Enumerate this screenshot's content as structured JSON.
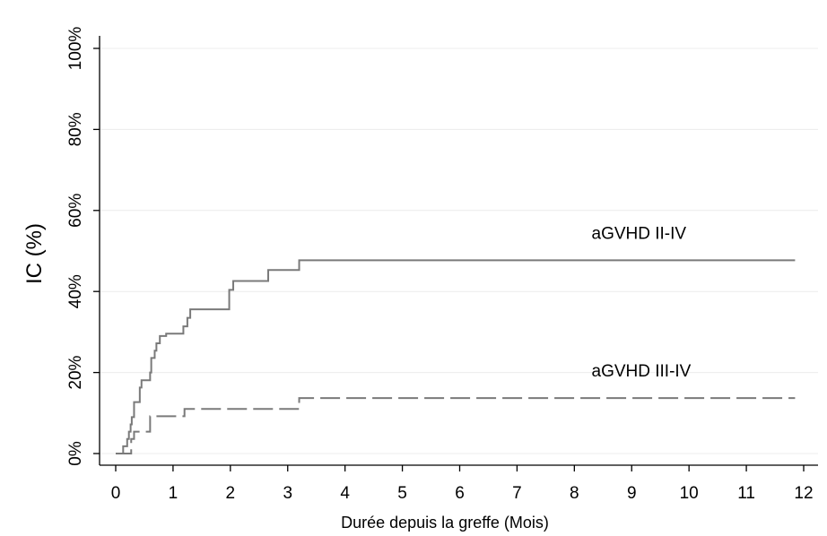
{
  "chart_data": {
    "type": "line",
    "title": "",
    "xlabel": "Durée depuis la greffe (Mois)",
    "ylabel": "IC (%)",
    "xlim": [
      0,
      12
    ],
    "ylim": [
      0,
      100
    ],
    "x_ticks": [
      0,
      1,
      2,
      3,
      4,
      5,
      6,
      7,
      8,
      9,
      10,
      11,
      12
    ],
    "x_tick_labels": [
      "0",
      "1",
      "2",
      "3",
      "4",
      "5",
      "6",
      "7",
      "8",
      "9",
      "10",
      "11",
      "12"
    ],
    "y_ticks": [
      0,
      20,
      40,
      60,
      80,
      100
    ],
    "y_tick_labels": [
      "0%",
      "20%",
      "40%",
      "60%",
      "80%",
      "100%"
    ],
    "grid": "horizontal",
    "legend": "none",
    "colors": {
      "series": "#7a7a7a",
      "axis": "#000000",
      "grid": "#ececec"
    },
    "series": [
      {
        "name": "aGVHD II-IV",
        "style": "solid",
        "step": true,
        "points": [
          [
            0,
            0
          ],
          [
            0.13,
            1.8
          ],
          [
            0.2,
            3.6
          ],
          [
            0.23,
            5.4
          ],
          [
            0.26,
            7.2
          ],
          [
            0.28,
            9.0
          ],
          [
            0.32,
            12.7
          ],
          [
            0.42,
            16.3
          ],
          [
            0.45,
            18.1
          ],
          [
            0.6,
            20.0
          ],
          [
            0.62,
            23.6
          ],
          [
            0.68,
            25.4
          ],
          [
            0.71,
            27.2
          ],
          [
            0.77,
            29.0
          ],
          [
            0.88,
            29.6
          ],
          [
            1.18,
            31.4
          ],
          [
            1.25,
            33.5
          ],
          [
            1.3,
            35.6
          ],
          [
            1.98,
            40.4
          ],
          [
            2.05,
            42.6
          ],
          [
            2.66,
            45.3
          ],
          [
            3.2,
            47.7
          ],
          [
            11.85,
            47.7
          ]
        ]
      },
      {
        "name": "aGVHD III-IV",
        "style": "dashed",
        "step": true,
        "points": [
          [
            0,
            0
          ],
          [
            0.27,
            3.6
          ],
          [
            0.32,
            5.4
          ],
          [
            0.6,
            9.2
          ],
          [
            1.2,
            11.0
          ],
          [
            3.2,
            13.7
          ],
          [
            11.85,
            13.7
          ]
        ]
      }
    ],
    "annotations": [
      {
        "text": "aGVHD II-IV",
        "x": 8.3,
        "y": 53
      },
      {
        "text": "aGVHD III-IV",
        "x": 8.3,
        "y": 19
      }
    ]
  }
}
